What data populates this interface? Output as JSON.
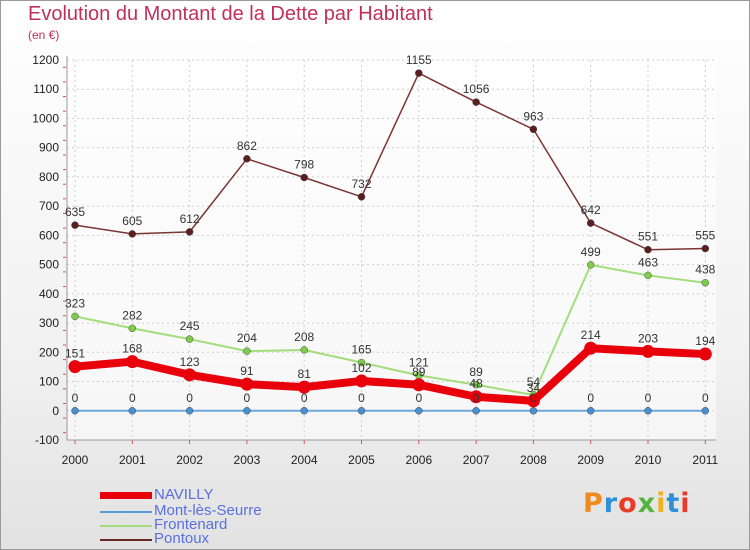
{
  "title": "Evolution du Montant de la Dette par Habitant",
  "subtitle": "(en €)",
  "logo": {
    "letters": [
      "P",
      "r",
      "o",
      "x",
      "i",
      "t",
      "i"
    ],
    "colors": [
      "#f08a1e",
      "#2f8fd8",
      "#e83c28",
      "#55b43c",
      "#f0b21e",
      "#2f8fd8",
      "#e83c28"
    ]
  },
  "chart_data": {
    "type": "line",
    "title": "Evolution du Montant de la Dette par Habitant",
    "ylabel": "(en €)",
    "categories": [
      "2000",
      "2001",
      "2002",
      "2003",
      "2004",
      "2005",
      "2006",
      "2007",
      "2008",
      "2009",
      "2010",
      "2011"
    ],
    "ylim": [
      -100,
      1200
    ],
    "yticks": [
      "-100",
      "0",
      "100",
      "200",
      "300",
      "400",
      "500",
      "600",
      "700",
      "800",
      "900",
      "1000",
      "1100",
      "1200"
    ],
    "grid": true,
    "legend_position": "bottom-left",
    "series": [
      {
        "name": "NAVILLY",
        "color": "#e8000b",
        "values": [
          151,
          168,
          123,
          91,
          81,
          102,
          89,
          48,
          34,
          214,
          203,
          194
        ]
      },
      {
        "name": "Mont-lès-Seurre",
        "color": "#5b9bd5",
        "values": [
          0,
          0,
          0,
          0,
          0,
          0,
          0,
          0,
          0,
          0,
          0,
          0
        ]
      },
      {
        "name": "Frontenard",
        "color": "#a4dd7e",
        "values": [
          323,
          282,
          245,
          204,
          208,
          165,
          121,
          89,
          54,
          499,
          463,
          438
        ]
      },
      {
        "name": "Pontoux",
        "color": "#6b2a2a",
        "values": [
          635,
          605,
          612,
          862,
          798,
          732,
          1155,
          1056,
          963,
          642,
          551,
          555
        ]
      }
    ],
    "data_labels": {
      "NAVILLY": [
        "151",
        "168",
        "123",
        "91",
        "81",
        "102",
        "89",
        "48",
        "34",
        "214",
        "203",
        "194"
      ],
      "Mont-lès-Seurre": [
        "0",
        "0",
        "0",
        "0",
        "0",
        "0",
        "0",
        "0",
        "0",
        "0",
        "0",
        "0"
      ],
      "Frontenard": [
        "323",
        "282",
        "245",
        "204",
        "208",
        "165",
        "121",
        "89",
        "54",
        "499",
        "463",
        "438"
      ],
      "Pontoux": [
        "635",
        "605",
        "612",
        "862",
        "798",
        "732",
        "1155",
        "1056",
        "963",
        "642",
        "551",
        "555"
      ]
    }
  }
}
